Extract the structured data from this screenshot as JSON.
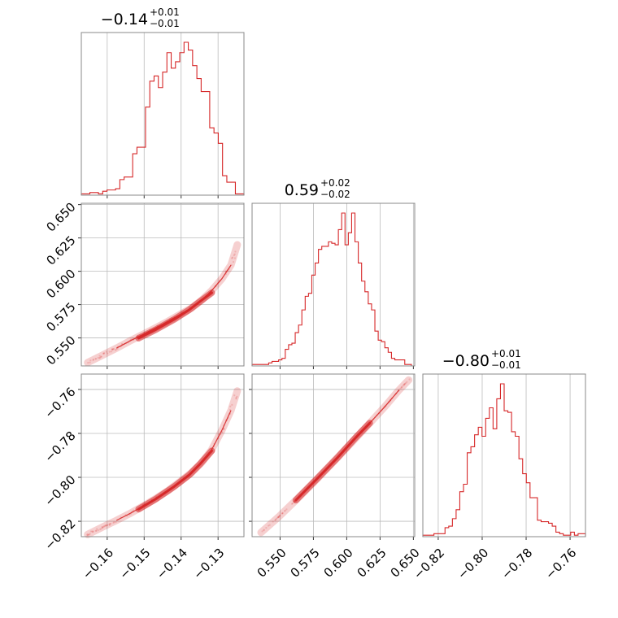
{
  "chart_data": {
    "type": "corner",
    "color": "#d62728",
    "parameters": [
      {
        "index": 0,
        "title": {
          "main": "−0.14",
          "plus": "+0.01",
          "minus": "−0.01"
        },
        "range": [
          -0.167,
          -0.123
        ],
        "ticks": [
          -0.16,
          -0.15,
          -0.14,
          -0.13
        ],
        "tick_labels": [
          "−0.16",
          "−0.15",
          "−0.14",
          "−0.13"
        ]
      },
      {
        "index": 1,
        "title": {
          "main": "0.59",
          "plus": "+0.02",
          "minus": "−0.02"
        },
        "range": [
          0.529,
          0.651
        ],
        "ticks": [
          0.55,
          0.575,
          0.6,
          0.625,
          0.65
        ],
        "tick_labels": [
          "0.550",
          "0.575",
          "0.600",
          "0.625",
          "0.650"
        ]
      },
      {
        "index": 2,
        "title": {
          "main": "−0.80",
          "plus": "+0.01",
          "minus": "−0.01"
        },
        "range": [
          -0.827,
          -0.753
        ],
        "ticks": [
          -0.82,
          -0.8,
          -0.78,
          -0.76
        ],
        "tick_labels": [
          "−0.82",
          "−0.80",
          "−0.78",
          "−0.76"
        ]
      }
    ],
    "histograms": [
      {
        "param": 0,
        "counts": [
          1,
          1,
          2,
          2,
          1,
          3,
          4,
          4,
          5,
          12,
          14,
          14,
          32,
          37,
          37,
          68,
          88,
          92,
          83,
          95,
          110,
          98,
          103,
          110,
          118,
          112,
          100,
          90,
          80,
          80,
          52,
          48,
          40,
          15,
          10,
          10,
          1,
          1
        ]
      },
      {
        "param": 1,
        "counts": [
          1,
          1,
          1,
          1,
          1,
          2,
          3,
          3,
          4,
          5,
          11,
          14,
          15,
          22,
          27,
          37,
          46,
          48,
          60,
          68,
          77,
          79,
          79,
          82,
          81,
          80,
          90,
          101,
          80,
          88,
          101,
          82,
          68,
          56,
          49,
          41,
          37,
          23,
          17,
          16,
          12,
          9,
          5,
          4,
          4,
          4,
          1,
          1,
          0
        ]
      },
      {
        "param": 2,
        "counts": [
          1,
          1,
          1,
          2,
          2,
          2,
          6,
          7,
          12,
          18,
          30,
          35,
          56,
          60,
          68,
          73,
          67,
          79,
          86,
          72,
          92,
          102,
          84,
          83,
          70,
          67,
          52,
          42,
          36,
          26,
          26,
          11,
          10,
          10,
          9,
          7,
          3,
          2,
          1,
          1,
          3,
          1,
          2,
          2
        ]
      }
    ],
    "pairs": [
      {
        "x_param": 0,
        "y_param": 1,
        "ridge": [
          [
            -0.1653,
            0.5315
          ],
          [
            -0.1616,
            0.5366
          ],
          [
            -0.1575,
            0.5423
          ],
          [
            -0.154,
            0.5475
          ],
          [
            -0.1505,
            0.5524
          ],
          [
            -0.147,
            0.5574
          ],
          [
            -0.1435,
            0.5625
          ],
          [
            -0.1405,
            0.5673
          ],
          [
            -0.1372,
            0.5724
          ],
          [
            -0.1345,
            0.5782
          ],
          [
            -0.1318,
            0.5853
          ],
          [
            -0.129,
            0.5943
          ],
          [
            -0.1265,
            0.6047
          ],
          [
            -0.1248,
            0.6199
          ]
        ],
        "core": [
          [
            -0.1515,
            0.5498
          ],
          [
            -0.1468,
            0.5563
          ],
          [
            -0.1418,
            0.564
          ],
          [
            -0.1378,
            0.5711
          ],
          [
            -0.1348,
            0.5775
          ],
          [
            -0.1317,
            0.5839
          ]
        ]
      },
      {
        "x_param": 0,
        "y_param": 2,
        "ridge": [
          [
            -0.1653,
            -0.826
          ],
          [
            -0.1616,
            -0.8229
          ],
          [
            -0.1575,
            -0.8196
          ],
          [
            -0.154,
            -0.8166
          ],
          [
            -0.1505,
            -0.8133
          ],
          [
            -0.147,
            -0.8098
          ],
          [
            -0.1435,
            -0.806
          ],
          [
            -0.1405,
            -0.8022
          ],
          [
            -0.1372,
            -0.7979
          ],
          [
            -0.1345,
            -0.7934
          ],
          [
            -0.1318,
            -0.7876
          ],
          [
            -0.129,
            -0.7787
          ],
          [
            -0.1265,
            -0.7695
          ],
          [
            -0.1248,
            -0.7607
          ]
        ],
        "core": [
          [
            -0.1515,
            -0.8145
          ],
          [
            -0.1468,
            -0.8098
          ],
          [
            -0.1418,
            -0.8041
          ],
          [
            -0.1378,
            -0.7989
          ],
          [
            -0.1348,
            -0.7938
          ],
          [
            -0.1317,
            -0.7879
          ]
        ]
      },
      {
        "x_param": 1,
        "y_param": 2,
        "ridge": [
          [
            0.5357,
            -0.8251
          ],
          [
            0.5493,
            -0.8178
          ],
          [
            0.5629,
            -0.8098
          ],
          [
            0.5765,
            -0.8015
          ],
          [
            0.5901,
            -0.7929
          ],
          [
            0.6037,
            -0.7842
          ],
          [
            0.6173,
            -0.7753
          ],
          [
            0.6288,
            -0.7677
          ],
          [
            0.6392,
            -0.7603
          ],
          [
            0.6465,
            -0.7557
          ]
        ],
        "core": [
          [
            0.5618,
            -0.8104
          ],
          [
            0.5775,
            -0.8008
          ],
          [
            0.5933,
            -0.7909
          ],
          [
            0.6069,
            -0.7818
          ],
          [
            0.6173,
            -0.7753
          ]
        ]
      }
    ]
  }
}
